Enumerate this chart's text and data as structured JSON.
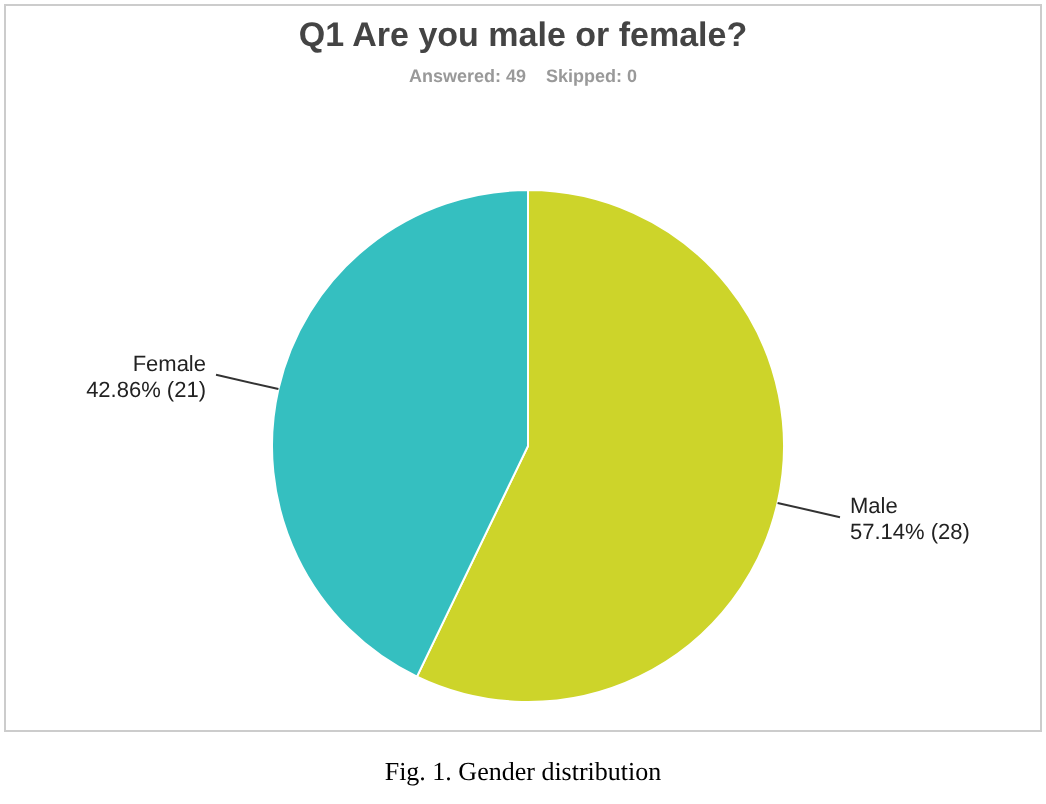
{
  "chart_data": {
    "type": "pie",
    "title": "Q1 Are you male or female?",
    "subtitle": "Answered: 49    Skipped: 0",
    "categories": [
      "Male",
      "Female"
    ],
    "values": [
      57.14,
      42.86
    ],
    "value_labels": [
      "57.14% (28)",
      "42.86% (21)"
    ],
    "colors": [
      "#cdd42a",
      "#35bfc0"
    ],
    "annotations": [
      "Fig. 1. Gender distribution"
    ]
  }
}
